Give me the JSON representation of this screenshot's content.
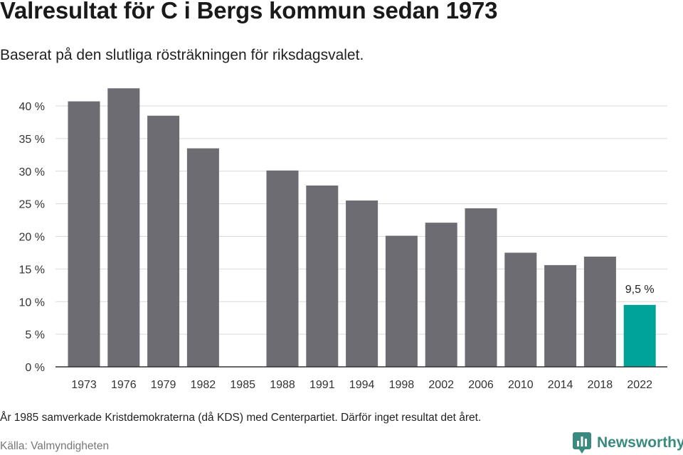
{
  "header": {
    "title": "Valresultat för C i Bergs kommun sedan 1973",
    "subtitle": "Baserat på den slutliga rösträkningen för riksdagsvalet."
  },
  "footer": {
    "note": "År 1985 samverkade Kristdemokraterna (då KDS) med Centerpartiet. Därför inget resultat det året.",
    "source": "Källa: Valmyndigheten",
    "brand": "Newsworthy",
    "brand_icon": "newsworthy-logo-icon"
  },
  "colors": {
    "bar": "#6d6c72",
    "highlight": "#00a398",
    "grid": "#d9d9d9",
    "axis": "#333333",
    "brand": "#3a8a7f"
  },
  "chart_data": {
    "type": "bar",
    "categories": [
      "1973",
      "1976",
      "1979",
      "1982",
      "1985",
      "1988",
      "1991",
      "1994",
      "1998",
      "2002",
      "2006",
      "2010",
      "2014",
      "2018",
      "2022"
    ],
    "values": [
      40.7,
      42.7,
      38.5,
      33.5,
      null,
      30.1,
      27.8,
      25.5,
      20.1,
      22.1,
      24.3,
      17.5,
      15.6,
      16.9,
      9.5
    ],
    "highlight_index": 14,
    "data_labels": [
      {
        "index": 14,
        "text": "9,5 %"
      }
    ],
    "yticks": [
      "0 %",
      "5 %",
      "10 %",
      "15 %",
      "20 %",
      "25 %",
      "30 %",
      "35 %",
      "40 %"
    ],
    "ytick_values": [
      0,
      5,
      10,
      15,
      20,
      25,
      30,
      35,
      40
    ],
    "ylim": [
      0,
      43
    ],
    "grid": true,
    "legend": "none"
  }
}
